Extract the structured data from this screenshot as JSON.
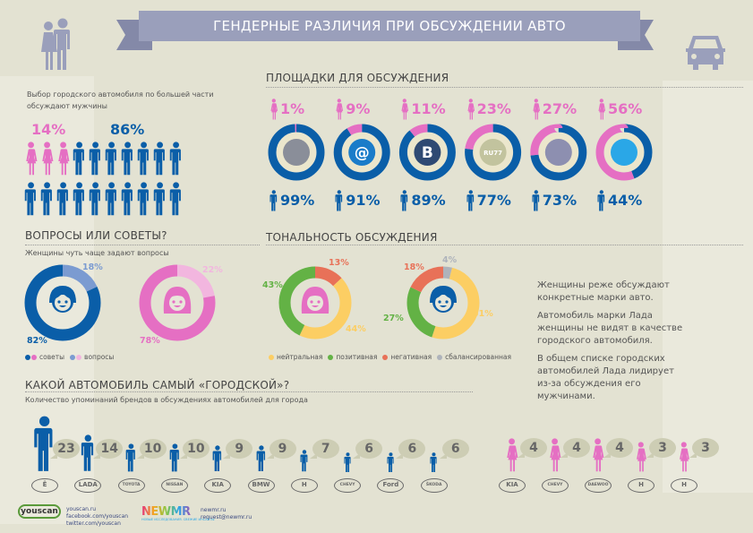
{
  "title": "ГЕНДЕРНЫЕ РАЗЛИЧИЯ ПРИ ОБСУЖДЕНИИ АВТО",
  "colors": {
    "male": "#0a5ea8",
    "female": "#e56fc3",
    "male_light": "#7b9bd1",
    "female_light": "#f2b6df",
    "neutral": "#fcce63",
    "positive": "#63b245",
    "negative": "#e87158",
    "balanced": "#aeb3bb",
    "bubble": "#cdcdb4"
  },
  "intro": {
    "text": "Выбор городского автомобиля по большей части обсуждают мужчины",
    "female_pct": "14%",
    "male_pct": "86%"
  },
  "platforms": {
    "heading": "ПЛОЩАДКИ ДЛЯ ОБСУЖДЕНИЯ",
    "items": [
      {
        "icon": "car-forum-icon",
        "icon_text": "",
        "icon_color": "#8a8e99",
        "female": 1,
        "male": 99,
        "female_label": "1%",
        "male_label": "99%"
      },
      {
        "icon": "mail-at-icon",
        "icon_text": "@",
        "icon_color": "#1a7cc9",
        "female": 9,
        "male": 91,
        "female_label": "9%",
        "male_label": "91%"
      },
      {
        "icon": "vkontakte-icon",
        "icon_text": "B",
        "icon_color": "#2f4a73",
        "female": 11,
        "male": 89,
        "female_label": "11%",
        "male_label": "89%"
      },
      {
        "icon": "ru77-icon",
        "icon_text": "RU77",
        "icon_color": "#c2c39e",
        "female": 23,
        "male": 77,
        "female_label": "23%",
        "male_label": "77%"
      },
      {
        "icon": "livejournal-icon",
        "icon_text": "",
        "icon_color": "#8d8fb0",
        "female": 27,
        "male": 73,
        "female_label": "27%",
        "male_label": "73%"
      },
      {
        "icon": "twitter-icon",
        "icon_text": "",
        "icon_color": "#2aa7e7",
        "female": 56,
        "male": 44,
        "female_label": "56%",
        "male_label": "44%"
      }
    ]
  },
  "questions": {
    "heading": "ВОПРОСЫ ИЛИ СОВЕТЫ?",
    "subtitle": "Женщины чуть чаще задают вопросы",
    "male": {
      "advice": 82,
      "questions": 18,
      "advice_label": "82%",
      "questions_label": "18%"
    },
    "female": {
      "advice": 78,
      "questions": 22,
      "advice_label": "78%",
      "questions_label": "22%"
    },
    "legend": {
      "advice": "советы",
      "questions": "вопросы"
    }
  },
  "tonality": {
    "heading": "ТОНАЛЬНОСТЬ ОБСУЖДЕНИЯ",
    "female": {
      "negative": 13,
      "neutral": 44,
      "positive": 43,
      "labels": {
        "negative": "13%",
        "neutral": "44%",
        "positive": "43%"
      }
    },
    "male": {
      "balanced": 4,
      "neutral": 51,
      "positive": 27,
      "negative": 18,
      "labels": {
        "balanced": "4%",
        "neutral": "51%",
        "positive": "27%",
        "negative": "18%"
      }
    },
    "legend": {
      "neutral": "нейтральная",
      "positive": "позитивная",
      "negative": "негативная",
      "balanced": "сбалансированная"
    }
  },
  "notes": [
    "Женщины реже обсуждают конкретные марки авто.",
    "Автомобиль марки Лада женщины не видят в качестве городского автомобиля.",
    "В общем списке городских автомобилей Лада лидирует из-за обсуждения его мужчинами."
  ],
  "chart_data": [
    {
      "type": "bar",
      "title": "КАКОЙ АВТОМОБИЛЬ САМЫЙ «ГОРОДСКОЙ»?",
      "subtitle": "Количество упоминаний брендов в обсуждениях автомобилей для города",
      "series": [
        {
          "name": "male",
          "categories": [
            "Ё-мобиль",
            "Lada",
            "Toyota",
            "Nissan",
            "Kia",
            "BMW",
            "Honda",
            "Chevrolet",
            "Ford",
            "Skoda"
          ],
          "values": [
            23,
            14,
            10,
            10,
            9,
            9,
            7,
            6,
            6,
            6
          ],
          "logo_text": [
            "Ё",
            "LADA",
            "TOYOTA",
            "NISSAN",
            "KIA",
            "BMW",
            "H",
            "CHEVY",
            "Ford",
            "ŠKODA"
          ]
        },
        {
          "name": "female",
          "categories": [
            "Kia",
            "Chevrolet",
            "Daewoo",
            "Honda",
            "Hyundai"
          ],
          "values": [
            4,
            4,
            4,
            3,
            3
          ],
          "logo_text": [
            "KIA",
            "CHEVY",
            "DAEWOO",
            "H",
            "H"
          ]
        }
      ]
    }
  ],
  "footer": {
    "youscan_logo": "youscan",
    "youscan_links": [
      "youscan.ru",
      "facebook.com/youscan",
      "twitter.com/youscan"
    ],
    "newmr_logo": "NEWMR",
    "newmr_tagline": "НОВЫЕ ИССЛЕДОВАНИЯ. СВЕЖИЕ ИНСАЙТЫ",
    "newmr_links": [
      "newmr.ru",
      "request@newmr.ru"
    ]
  }
}
